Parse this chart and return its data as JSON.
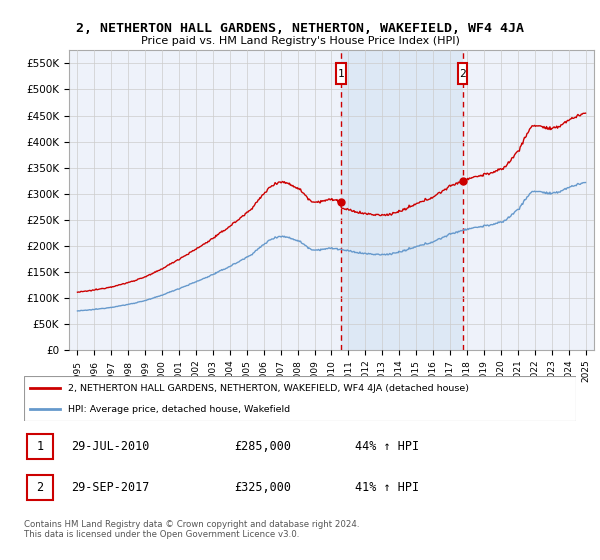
{
  "title": "2, NETHERTON HALL GARDENS, NETHERTON, WAKEFIELD, WF4 4JA",
  "subtitle": "Price paid vs. HM Land Registry's House Price Index (HPI)",
  "ylim": [
    0,
    575000
  ],
  "yticks": [
    0,
    50000,
    100000,
    150000,
    200000,
    250000,
    300000,
    350000,
    400000,
    450000,
    500000,
    550000
  ],
  "ytick_labels": [
    "£0",
    "£50K",
    "£100K",
    "£150K",
    "£200K",
    "£250K",
    "£300K",
    "£350K",
    "£400K",
    "£450K",
    "£500K",
    "£550K"
  ],
  "sale1_date": 2010.57,
  "sale1_price": 285000,
  "sale1_label": "1",
  "sale2_date": 2017.74,
  "sale2_price": 325000,
  "sale2_label": "2",
  "line1_color": "#cc0000",
  "line2_color": "#6699cc",
  "dashed_color": "#cc0000",
  "shade_color": "#dde8f5",
  "legend_line1": "2, NETHERTON HALL GARDENS, NETHERTON, WAKEFIELD, WF4 4JA (detached house)",
  "legend_line2": "HPI: Average price, detached house, Wakefield",
  "table_row1": [
    "1",
    "29-JUL-2010",
    "£285,000",
    "44% ↑ HPI"
  ],
  "table_row2": [
    "2",
    "29-SEP-2017",
    "£325,000",
    "41% ↑ HPI"
  ],
  "footnote": "Contains HM Land Registry data © Crown copyright and database right 2024.\nThis data is licensed under the Open Government Licence v3.0.",
  "bg_color": "#ffffff",
  "grid_color": "#cccccc",
  "plot_bg": "#eef2fa"
}
